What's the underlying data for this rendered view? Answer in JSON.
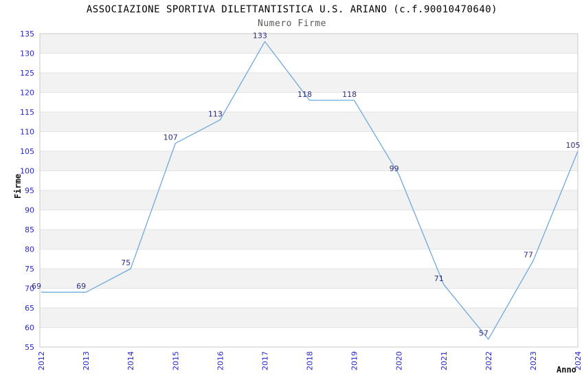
{
  "chart_data": {
    "type": "line",
    "title": "ASSOCIAZIONE SPORTIVA DILETTANTISTICA U.S. ARIANO (c.f.90010470640)",
    "subtitle": "Numero Firme",
    "xlabel": "Anno",
    "ylabel": "Firme",
    "categories": [
      "2012",
      "2013",
      "2014",
      "2015",
      "2016",
      "2017",
      "2018",
      "2019",
      "2020",
      "2021",
      "2022",
      "2023",
      "2024"
    ],
    "series": [
      {
        "name": "Numero Firme",
        "values": [
          69,
          69,
          75,
          107,
          113,
          133,
          118,
          118,
          99,
          71,
          57,
          77,
          105
        ]
      }
    ],
    "ylim": [
      55,
      135
    ],
    "ytick_step": 5,
    "grid": "horizontal",
    "banded_background": true,
    "legend_position": "none",
    "data_labels_visible": true,
    "colors": {
      "line": "#6fa8dc",
      "tick_label": "#2626cc",
      "data_label": "#2d2d7f",
      "band_dark": "#f2f2f2",
      "band_light": "#ffffff",
      "gridline": "#e3e3e3",
      "plot_border": "#c9c9c9",
      "title": "#000000",
      "subtitle": "#595959"
    }
  }
}
